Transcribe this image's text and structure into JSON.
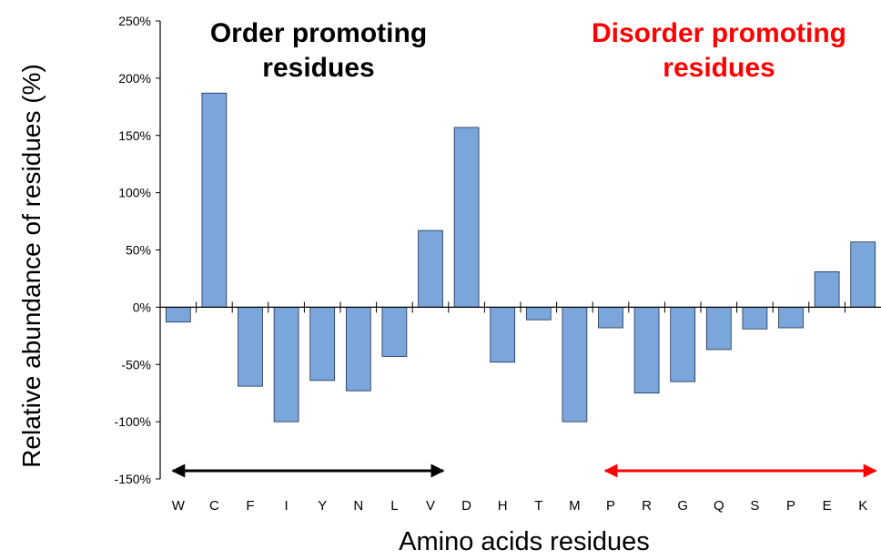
{
  "chart_data": {
    "type": "bar",
    "categories": [
      "W",
      "C",
      "F",
      "I",
      "Y",
      "N",
      "L",
      "V",
      "D",
      "H",
      "T",
      "M",
      "P",
      "R",
      "G",
      "Q",
      "S",
      "P",
      "E",
      "K"
    ],
    "values": [
      -13,
      187,
      -69,
      -100,
      -64,
      -73,
      -43,
      67,
      157,
      -48,
      -11,
      -100,
      -18,
      -75,
      -65,
      -37,
      -19,
      -18,
      31,
      57
    ],
    "ylabel": "Relative abundance of residues (%)",
    "xlabel": "Amino acids residues",
    "ylim": [
      -150,
      250
    ],
    "yticks": [
      "250%",
      "200%",
      "150%",
      "100%",
      "50%",
      "0%",
      "-50%",
      "-100%",
      "-150%"
    ],
    "ytick_values": [
      250,
      200,
      150,
      100,
      50,
      0,
      -50,
      -100,
      -150
    ],
    "bar_color": "#7aa6dc",
    "bar_edge_color": "#1f2f4f",
    "grid": false,
    "annotations": [
      {
        "lines": [
          "Order promoting",
          "residues"
        ],
        "color": "#000000",
        "span": [
          "W",
          "V"
        ],
        "arrow_color": "#000000"
      },
      {
        "lines": [
          "Disorder promoting",
          "residues"
        ],
        "color": "#ff0000",
        "span": [
          "P",
          "K"
        ],
        "arrow_color": "#ff0000"
      }
    ]
  }
}
